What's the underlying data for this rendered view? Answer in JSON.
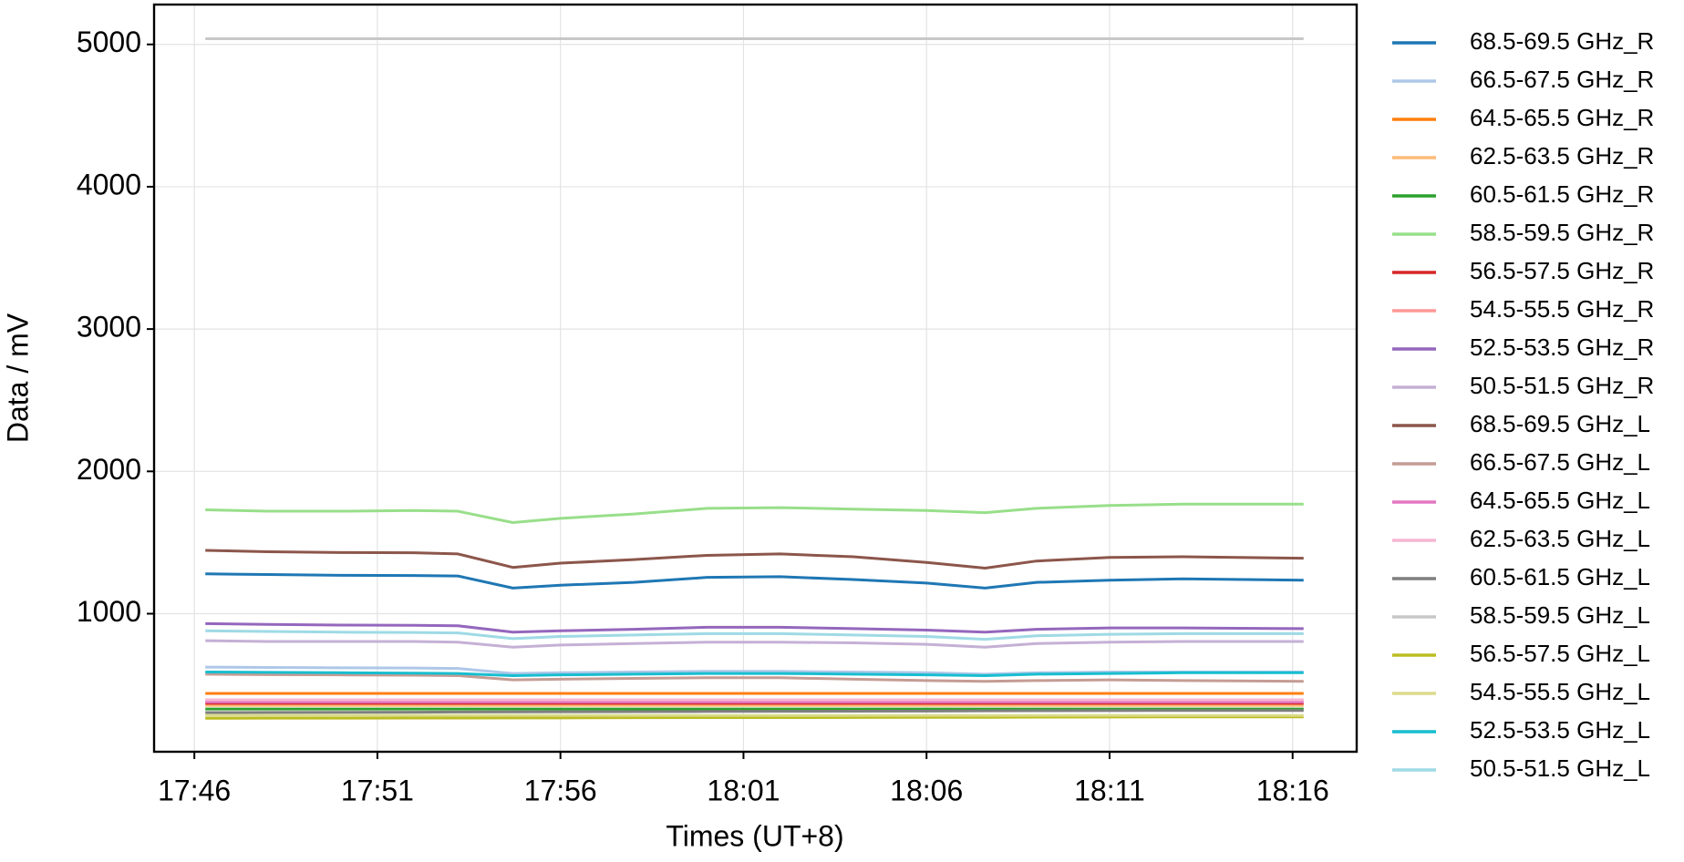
{
  "chart_data": {
    "type": "line",
    "xlabel": "Times (UT+8)",
    "ylabel": "Data / mV",
    "x": [
      1066.3,
      1068,
      1070,
      1072,
      1073.2,
      1074.7,
      1076,
      1078,
      1080,
      1082,
      1084,
      1086,
      1087.6,
      1089,
      1091,
      1093,
      1096.3
    ],
    "xlim": [
      1064.9,
      1097.75
    ],
    "xticks": [
      {
        "value": 1066,
        "label": "17:46"
      },
      {
        "value": 1071,
        "label": "17:51"
      },
      {
        "value": 1076,
        "label": "17:56"
      },
      {
        "value": 1081,
        "label": "18:01"
      },
      {
        "value": 1086,
        "label": "18:06"
      },
      {
        "value": 1091,
        "label": "18:11"
      },
      {
        "value": 1096,
        "label": "18:16"
      }
    ],
    "ylim": [
      30,
      5280
    ],
    "yticks": [
      1000,
      2000,
      3000,
      4000,
      5000
    ],
    "grid": true,
    "legend": "outside-right",
    "series": [
      {
        "name": "68.5-69.5 GHz_R",
        "color": "#1f77b4",
        "values": [
          1280,
          1275,
          1270,
          1268,
          1265,
          1180,
          1200,
          1220,
          1255,
          1260,
          1240,
          1215,
          1180,
          1220,
          1235,
          1245,
          1235
        ]
      },
      {
        "name": "66.5-67.5 GHz_R",
        "color": "#aec7e8",
        "values": [
          625,
          622,
          620,
          618,
          615,
          580,
          585,
          590,
          595,
          595,
          590,
          585,
          575,
          585,
          590,
          590,
          590
        ]
      },
      {
        "name": "64.5-65.5 GHz_R",
        "color": "#ff7f0e",
        "values": [
          440,
          440,
          440,
          440,
          440,
          440,
          440,
          440,
          440,
          440,
          440,
          440,
          440,
          440,
          440,
          440,
          440
        ]
      },
      {
        "name": "62.5-63.5 GHz_R",
        "color": "#ffbb78",
        "values": [
          355,
          355,
          355,
          355,
          355,
          355,
          355,
          355,
          355,
          355,
          355,
          355,
          355,
          355,
          355,
          355,
          355
        ]
      },
      {
        "name": "60.5-61.5 GHz_R",
        "color": "#2ca02c",
        "values": [
          330,
          330,
          330,
          330,
          330,
          330,
          330,
          330,
          330,
          330,
          330,
          330,
          330,
          330,
          330,
          330,
          330
        ]
      },
      {
        "name": "58.5-59.5 GHz_R",
        "color": "#98df8a",
        "values": [
          1730,
          1720,
          1720,
          1725,
          1720,
          1640,
          1670,
          1700,
          1740,
          1745,
          1735,
          1725,
          1710,
          1740,
          1760,
          1770,
          1770
        ]
      },
      {
        "name": "56.5-57.5 GHz_R",
        "color": "#d62728",
        "values": [
          370,
          370,
          370,
          370,
          370,
          370,
          370,
          370,
          370,
          370,
          370,
          370,
          370,
          370,
          370,
          370,
          370
        ]
      },
      {
        "name": "54.5-55.5 GHz_R",
        "color": "#ff9896",
        "values": [
          390,
          390,
          390,
          390,
          390,
          390,
          390,
          390,
          390,
          390,
          390,
          390,
          390,
          390,
          390,
          390,
          390
        ]
      },
      {
        "name": "52.5-53.5 GHz_R",
        "color": "#9467bd",
        "values": [
          930,
          925,
          920,
          918,
          915,
          870,
          880,
          890,
          905,
          905,
          895,
          885,
          870,
          890,
          900,
          900,
          895
        ]
      },
      {
        "name": "50.5-51.5 GHz_R",
        "color": "#c5b0d5",
        "values": [
          810,
          805,
          805,
          805,
          800,
          765,
          780,
          790,
          800,
          800,
          795,
          785,
          765,
          790,
          800,
          805,
          805
        ]
      },
      {
        "name": "68.5-69.5 GHz_L",
        "color": "#8c564b",
        "values": [
          1445,
          1435,
          1430,
          1428,
          1420,
          1325,
          1355,
          1380,
          1410,
          1420,
          1400,
          1360,
          1320,
          1370,
          1395,
          1400,
          1390
        ]
      },
      {
        "name": "66.5-67.5 GHz_L",
        "color": "#c49c94",
        "values": [
          575,
          572,
          570,
          568,
          565,
          535,
          540,
          545,
          550,
          550,
          540,
          530,
          525,
          530,
          535,
          530,
          525
        ]
      },
      {
        "name": "64.5-65.5 GHz_L",
        "color": "#e377c2",
        "values": [
          380,
          380,
          380,
          380,
          380,
          380,
          380,
          380,
          380,
          380,
          380,
          380,
          380,
          380,
          380,
          380,
          380
        ]
      },
      {
        "name": "62.5-63.5 GHz_L",
        "color": "#f7b6d2",
        "values": [
          395,
          395,
          395,
          395,
          395,
          395,
          395,
          395,
          395,
          395,
          395,
          395,
          395,
          395,
          395,
          395,
          395
        ]
      },
      {
        "name": "60.5-61.5 GHz_L",
        "color": "#7f7f7f",
        "values": [
          305,
          306,
          307,
          308,
          309,
          310,
          311,
          312,
          313,
          314,
          315,
          316,
          317,
          318,
          319,
          320,
          320
        ]
      },
      {
        "name": "58.5-59.5 GHz_L",
        "color": "#c7c7c7",
        "values": [
          5040,
          5040,
          5040,
          5040,
          5040,
          5040,
          5040,
          5040,
          5040,
          5040,
          5040,
          5040,
          5040,
          5040,
          5040,
          5040,
          5040
        ]
      },
      {
        "name": "56.5-57.5 GHz_L",
        "color": "#bcbd22",
        "values": [
          265,
          266,
          266,
          267,
          267,
          268,
          268,
          269,
          270,
          270,
          271,
          272,
          272,
          273,
          274,
          275,
          275
        ]
      },
      {
        "name": "54.5-55.5 GHz_L",
        "color": "#dbdb8d",
        "values": [
          285,
          285,
          285,
          285,
          285,
          285,
          285,
          285,
          285,
          285,
          285,
          285,
          285,
          285,
          285,
          285,
          285
        ]
      },
      {
        "name": "52.5-53.5 GHz_L",
        "color": "#17becf",
        "values": [
          590,
          588,
          585,
          582,
          580,
          565,
          570,
          575,
          580,
          580,
          575,
          570,
          565,
          575,
          580,
          585,
          585
        ]
      },
      {
        "name": "50.5-51.5 GHz_L",
        "color": "#9edae5",
        "values": [
          880,
          875,
          870,
          868,
          865,
          825,
          840,
          850,
          860,
          860,
          850,
          840,
          820,
          845,
          855,
          860,
          860
        ]
      }
    ]
  }
}
